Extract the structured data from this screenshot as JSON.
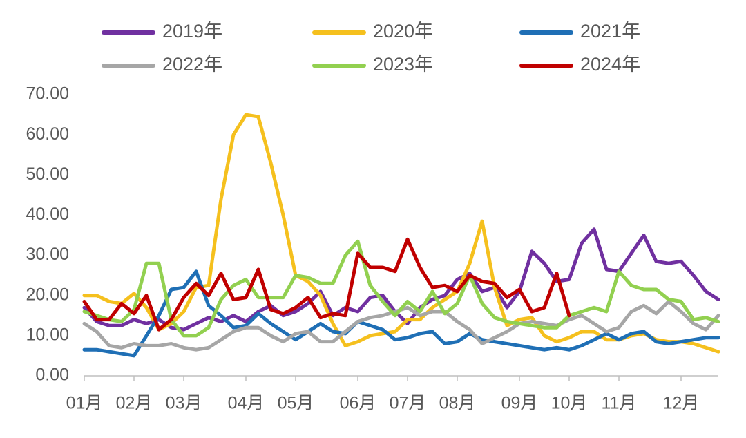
{
  "chart_data": {
    "type": "line",
    "categories": [
      "01月",
      null,
      null,
      null,
      "02月",
      null,
      null,
      null,
      "03月",
      null,
      null,
      null,
      null,
      "04月",
      null,
      null,
      null,
      "05月",
      null,
      null,
      null,
      null,
      "06月",
      null,
      null,
      null,
      "07月",
      null,
      null,
      null,
      "08月",
      null,
      null,
      null,
      null,
      "09月",
      null,
      null,
      null,
      "10月",
      null,
      null,
      null,
      "11月",
      null,
      null,
      null,
      null,
      "12月",
      null,
      null,
      null
    ],
    "series": [
      {
        "name": "2019年",
        "color": "#7030a0",
        "values": [
          17,
          13.5,
          12.5,
          12.5,
          14,
          13,
          14,
          12,
          11.5,
          13,
          14.5,
          13.5,
          15,
          13.5,
          16,
          17.5,
          15,
          16,
          18,
          21,
          15,
          17,
          16,
          19.5,
          20,
          16,
          13,
          17,
          19,
          20,
          24,
          25.5,
          21,
          22,
          17,
          21,
          31,
          28,
          23.5,
          24,
          33,
          36.5,
          26.5,
          26,
          30.5,
          35,
          28.5,
          28,
          28.5,
          25,
          21,
          19
        ]
      },
      {
        "name": "2020年",
        "color": "#f5c01e",
        "values": [
          20,
          20,
          18.5,
          18,
          20.5,
          17,
          11.5,
          13,
          16,
          22,
          22.5,
          44,
          60,
          65,
          64.5,
          53,
          40,
          25,
          23.5,
          20,
          13,
          7.5,
          8.5,
          10,
          10.5,
          11,
          14,
          14,
          17,
          19,
          21,
          28,
          38.5,
          22,
          12.5,
          14,
          14.5,
          10,
          8.5,
          9.5,
          11,
          11,
          9,
          9,
          10,
          10.5,
          9,
          8.5,
          8.5,
          8,
          7,
          6
        ]
      },
      {
        "name": "2021年",
        "color": "#1f6fb5",
        "values": [
          6.5,
          6.5,
          6,
          5.5,
          5,
          10,
          15,
          21.5,
          22,
          26,
          17.5,
          15,
          12,
          12.5,
          15.5,
          13,
          11,
          9,
          11,
          13,
          11,
          10.5,
          13.5,
          12.5,
          11.5,
          9,
          9.5,
          10.5,
          11,
          8,
          8.5,
          10.5,
          9,
          8.5,
          8,
          7.5,
          7,
          6.5,
          7,
          6.5,
          7.5,
          9,
          10.5,
          9,
          10.5,
          11,
          8.5,
          8,
          8.5,
          9,
          9.5,
          9.5
        ]
      },
      {
        "name": "2022年",
        "color": "#a6a6a6",
        "values": [
          13,
          11,
          7.5,
          7,
          8,
          7.5,
          7.5,
          8,
          7,
          6.5,
          7,
          9,
          11,
          12,
          12,
          10,
          8.5,
          10.5,
          11,
          8.5,
          8.5,
          11,
          13.5,
          14.5,
          15,
          16,
          17,
          15,
          16,
          16,
          13.5,
          11.5,
          8,
          9.5,
          11,
          13,
          13.5,
          13,
          12.5,
          14,
          15,
          13,
          11,
          12,
          16,
          17.5,
          15.5,
          18.5,
          16,
          13,
          11.5,
          15
        ]
      },
      {
        "name": "2023年",
        "color": "#92d050",
        "values": [
          16,
          15,
          14,
          13.5,
          16.5,
          28,
          28,
          14,
          10,
          10,
          12,
          19,
          22.5,
          24,
          19.5,
          19.5,
          19.5,
          25,
          24.5,
          23,
          23,
          30,
          33.5,
          22.5,
          18.5,
          15,
          18.5,
          16,
          21,
          15.5,
          18,
          25,
          18,
          14.5,
          13.5,
          13,
          12.5,
          12,
          12,
          15,
          16,
          17,
          16,
          26,
          22.5,
          21.5,
          21.5,
          19,
          18.5,
          14,
          14.5,
          13.5
        ]
      },
      {
        "name": "2024年",
        "color": "#c00000",
        "values": [
          18.5,
          14,
          14,
          18,
          15.5,
          20,
          11.5,
          14,
          19.5,
          23,
          20,
          25.5,
          19,
          19.5,
          26.5,
          16.5,
          15.5,
          17,
          19.5,
          14.5,
          15.5,
          15,
          30.5,
          27,
          27,
          26,
          34,
          27,
          22,
          22.5,
          21,
          25,
          23.5,
          23,
          19.5,
          21.5,
          16,
          17,
          25.5,
          15,
          null,
          null,
          null,
          null,
          null,
          null,
          null,
          null,
          null,
          null,
          null,
          null
        ]
      }
    ],
    "ylim": [
      0,
      70
    ],
    "yticks": [
      {
        "value": 0,
        "label": "0.00"
      },
      {
        "value": 10,
        "label": "10.00"
      },
      {
        "value": 20,
        "label": "20.00"
      },
      {
        "value": 30,
        "label": "30.00"
      },
      {
        "value": 40,
        "label": "40.00"
      },
      {
        "value": 50,
        "label": "50.00"
      },
      {
        "value": 60,
        "label": "60.00"
      },
      {
        "value": 70,
        "label": "70.00"
      }
    ],
    "grid": false,
    "legend": "top"
  }
}
